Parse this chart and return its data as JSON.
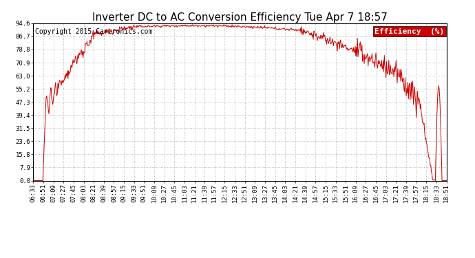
{
  "title": "Inverter DC to AC Conversion Efficiency Tue Apr 7 18:57",
  "copyright": "Copyright 2015 Cartronics.com",
  "legend_label": "Efficiency  (%)",
  "legend_bg": "#cc0000",
  "legend_fg": "#ffffff",
  "line_color": "#cc0000",
  "bg_color": "#ffffff",
  "plot_bg_color": "#ffffff",
  "grid_color": "#aaaaaa",
  "ytick_labels": [
    "0.0",
    "7.9",
    "15.8",
    "23.6",
    "31.5",
    "39.4",
    "47.3",
    "55.2",
    "63.0",
    "70.9",
    "78.8",
    "86.7",
    "94.6"
  ],
  "ytick_values": [
    0.0,
    7.9,
    15.8,
    23.6,
    31.5,
    39.4,
    47.3,
    55.2,
    63.0,
    70.9,
    78.8,
    86.7,
    94.6
  ],
  "ymin": 0.0,
  "ymax": 94.6,
  "xtick_labels": [
    "06:33",
    "06:51",
    "07:09",
    "07:27",
    "07:45",
    "08:03",
    "08:21",
    "08:39",
    "08:57",
    "09:15",
    "09:33",
    "09:51",
    "10:09",
    "10:27",
    "10:45",
    "11:03",
    "11:21",
    "11:39",
    "11:57",
    "12:15",
    "12:33",
    "12:51",
    "13:09",
    "13:27",
    "13:45",
    "14:03",
    "14:21",
    "14:39",
    "14:57",
    "15:15",
    "15:33",
    "15:51",
    "16:09",
    "16:27",
    "16:45",
    "17:03",
    "17:21",
    "17:39",
    "17:57",
    "18:15",
    "18:33",
    "18:51"
  ],
  "title_fontsize": 11,
  "copyright_fontsize": 7,
  "tick_fontsize": 6.5,
  "legend_fontsize": 8
}
